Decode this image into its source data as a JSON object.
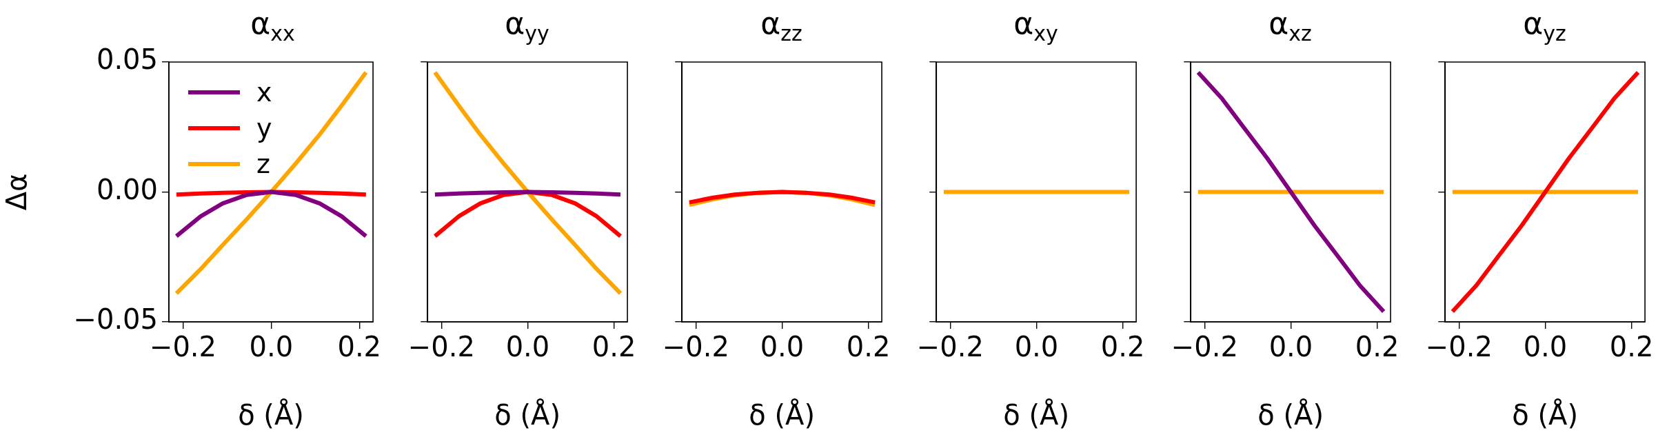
{
  "chart_data": [
    {
      "type": "line",
      "title": "α$_{xx}$",
      "xlabel": "δ (Å)",
      "ylabel": "Δα",
      "x": [
        -0.215,
        -0.16,
        -0.11,
        -0.055,
        0,
        0.055,
        0.11,
        0.16,
        0.215
      ],
      "xlim": [
        -0.232,
        0.231
      ],
      "xticks": [
        {
          "value": -0.2,
          "label": "−0.2"
        },
        {
          "value": 0,
          "label": "0.0"
        },
        {
          "value": 0.2,
          "label": "0.2"
        }
      ],
      "ylim": [
        -0.05,
        0.05
      ],
      "yticks": [
        {
          "value": -0.05,
          "label": "−0.05"
        },
        {
          "value": 0,
          "label": "0.00"
        },
        {
          "value": 0.05,
          "label": "0.05"
        }
      ],
      "legend": "top left",
      "grid": false,
      "series": [
        {
          "name": "x",
          "color": "#800080",
          "values": [
            -0.017,
            -0.0094,
            -0.0044,
            -0.0011,
            0,
            -0.0011,
            -0.0044,
            -0.0094,
            -0.017
          ]
        },
        {
          "name": "y",
          "color": "#ff0000",
          "values": [
            -0.001,
            -0.0006,
            -0.0003,
            -0.0001,
            0,
            -0.0001,
            -0.0003,
            -0.0006,
            -0.001
          ]
        },
        {
          "name": "z",
          "color": "#ffa500",
          "values": [
            -0.039,
            -0.0297,
            -0.0204,
            -0.0104,
            0,
            0.0108,
            0.0221,
            0.0333,
            0.046
          ]
        }
      ]
    },
    {
      "type": "line",
      "title": "α$_{yy}$",
      "xlabel": "δ (Å)",
      "x": [
        -0.215,
        -0.16,
        -0.11,
        -0.055,
        0,
        0.055,
        0.11,
        0.16,
        0.215
      ],
      "xlim": [
        -0.232,
        0.231
      ],
      "xticks": [
        {
          "value": -0.2,
          "label": "−0.2"
        },
        {
          "value": 0,
          "label": "0.0"
        },
        {
          "value": 0.2,
          "label": "0.2"
        }
      ],
      "ylim": [
        -0.05,
        0.05
      ],
      "yticks": [
        -0.05,
        0,
        0.05
      ],
      "tick_labels": "x",
      "grid": false,
      "series": [
        {
          "color": "#800080",
          "values": [
            -0.001,
            -0.0006,
            -0.0003,
            -0.0001,
            0,
            -0.0001,
            -0.0003,
            -0.0006,
            -0.001
          ]
        },
        {
          "color": "#ff0000",
          "values": [
            -0.017,
            -0.0094,
            -0.0044,
            -0.0011,
            0,
            -0.0011,
            -0.0044,
            -0.0094,
            -0.017
          ]
        },
        {
          "color": "#ffa500",
          "values": [
            0.046,
            0.0333,
            0.0221,
            0.0108,
            0,
            -0.0104,
            -0.0204,
            -0.0297,
            -0.039
          ]
        }
      ]
    },
    {
      "type": "line",
      "title": "α$_{zz}$",
      "xlabel": "δ (Å)",
      "x": [
        -0.215,
        -0.16,
        -0.11,
        -0.055,
        0,
        0.055,
        0.11,
        0.16,
        0.215
      ],
      "xlim": [
        -0.232,
        0.231
      ],
      "xticks": [
        {
          "value": -0.2,
          "label": "−0.2"
        },
        {
          "value": 0,
          "label": "0.0"
        },
        {
          "value": 0.2,
          "label": "0.2"
        }
      ],
      "ylim": [
        -0.05,
        0.05
      ],
      "yticks": [
        -0.05,
        0,
        0.05
      ],
      "tick_labels": "x",
      "grid": false,
      "series": [
        {
          "color": "#ff0000",
          "values": [
            -0.004,
            -0.0022,
            -0.001,
            -0.0003,
            0,
            -0.0003,
            -0.001,
            -0.0022,
            -0.004
          ]
        },
        {
          "color": "#ffa500",
          "values": [
            -0.005,
            -0.0028,
            -0.0013,
            -0.0003,
            0,
            -0.0003,
            -0.0013,
            -0.0028,
            -0.005
          ]
        }
      ]
    },
    {
      "type": "line",
      "title": "α$_{xy}$",
      "xlabel": "δ (Å)",
      "x": [
        -0.215,
        -0.16,
        -0.11,
        -0.055,
        0,
        0.055,
        0.11,
        0.16,
        0.215
      ],
      "xlim": [
        -0.232,
        0.231
      ],
      "xticks": [
        {
          "value": -0.2,
          "label": "−0.2"
        },
        {
          "value": 0,
          "label": "0.0"
        },
        {
          "value": 0.2,
          "label": "0.2"
        }
      ],
      "ylim": [
        -0.05,
        0.05
      ],
      "yticks": [
        -0.05,
        0,
        0.05
      ],
      "tick_labels": "x",
      "grid": false,
      "series": [
        {
          "color": "#ffa500",
          "values": [
            0,
            0,
            0,
            0,
            0,
            0,
            0,
            0,
            0
          ]
        }
      ]
    },
    {
      "type": "line",
      "title": "α$_{xz}$",
      "xlabel": "δ (Å)",
      "x": [
        -0.215,
        -0.16,
        -0.11,
        -0.055,
        0,
        0.055,
        0.11,
        0.16,
        0.215
      ],
      "xlim": [
        -0.232,
        0.231
      ],
      "xticks": [
        {
          "value": -0.2,
          "label": "−0.2"
        },
        {
          "value": 0,
          "label": "0.0"
        },
        {
          "value": 0.2,
          "label": "0.2"
        }
      ],
      "ylim": [
        -0.05,
        0.05
      ],
      "yticks": [
        -0.05,
        0,
        0.05
      ],
      "tick_labels": "x",
      "grid": false,
      "series": [
        {
          "color": "#800080",
          "values": [
            0.046,
            0.036,
            0.025,
            0.013,
            0,
            -0.013,
            -0.025,
            -0.036,
            -0.046
          ]
        },
        {
          "color": "#ffa500",
          "values": [
            0,
            0,
            0,
            0,
            0,
            0,
            0,
            0,
            0
          ]
        }
      ]
    },
    {
      "type": "line",
      "title": "α$_{yz}$",
      "xlabel": "δ (Å)",
      "x": [
        -0.215,
        -0.16,
        -0.11,
        -0.055,
        0,
        0.055,
        0.11,
        0.16,
        0.215
      ],
      "xlim": [
        -0.232,
        0.231
      ],
      "xticks": [
        {
          "value": -0.2,
          "label": "−0.2"
        },
        {
          "value": 0,
          "label": "0.0"
        },
        {
          "value": 0.2,
          "label": "0.2"
        }
      ],
      "ylim": [
        -0.05,
        0.05
      ],
      "yticks": [
        -0.05,
        0,
        0.05
      ],
      "tick_labels": "x",
      "grid": false,
      "series": [
        {
          "color": "#ff0000",
          "values": [
            -0.046,
            -0.036,
            -0.025,
            -0.013,
            0,
            0.013,
            0.025,
            0.036,
            0.046
          ]
        },
        {
          "color": "#ffa500",
          "values": [
            0,
            0,
            0,
            0,
            0,
            0,
            0,
            0,
            0
          ]
        }
      ]
    }
  ]
}
